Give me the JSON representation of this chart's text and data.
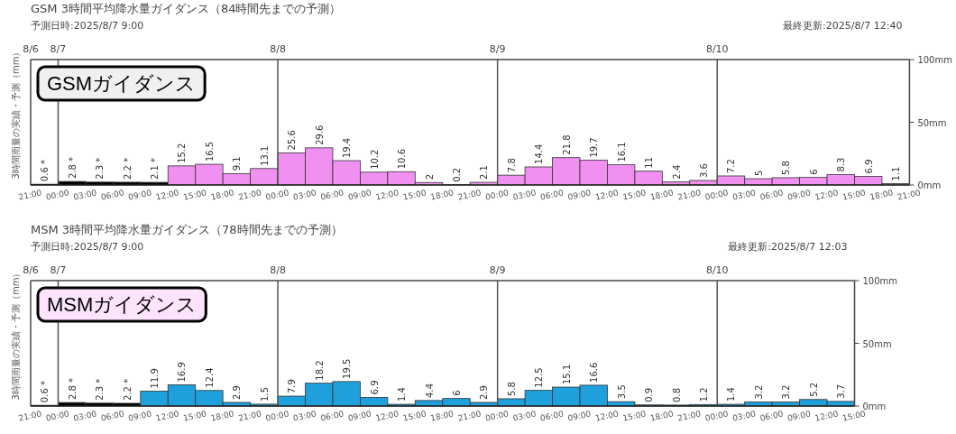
{
  "chart_data": [
    {
      "type": "bar",
      "title": "GSM 3時間平均降水量ガイダンス（84時間先までの予測）",
      "subtitle": "予測日時:2025/8/7 9:00",
      "ylabel": "3時間雨量の実績・予測（mm）",
      "annotations": [
        "最終更新:2025/8/7 12:40",
        "GSMガイダンス"
      ],
      "x": [
        "2025-08-06T22:30",
        "2025-08-07T01:30",
        "2025-08-07T04:30",
        "2025-08-07T07:30",
        "2025-08-07T10:30",
        "2025-08-07T13:30",
        "2025-08-07T16:30",
        "2025-08-07T19:30",
        "2025-08-07T22:30",
        "2025-08-08T01:30",
        "2025-08-08T04:30",
        "2025-08-08T07:30",
        "2025-08-08T10:30",
        "2025-08-08T13:30",
        "2025-08-08T16:30",
        "2025-08-08T19:30",
        "2025-08-08T22:30",
        "2025-08-09T01:30",
        "2025-08-09T04:30",
        "2025-08-09T07:30",
        "2025-08-09T10:30",
        "2025-08-09T13:30",
        "2025-08-09T16:30",
        "2025-08-09T19:30",
        "2025-08-09T22:30",
        "2025-08-10T01:30",
        "2025-08-10T04:30",
        "2025-08-10T07:30",
        "2025-08-10T10:30",
        "2025-08-10T13:30",
        "2025-08-10T16:30",
        "2025-08-10T19:30"
      ],
      "values": [
        0.6,
        2.8,
        2.3,
        2.2,
        2.1,
        15.2,
        16.5,
        9.1,
        13.1,
        25.6,
        29.6,
        19.4,
        10.2,
        10.6,
        2,
        0.2,
        2.1,
        7.8,
        14.4,
        21.8,
        19.7,
        16.1,
        11,
        2.4,
        3.6,
        7.2,
        5,
        5.8,
        6,
        8.3,
        6.9,
        1.1
      ],
      "value_labels": [
        "0.6 *",
        "2.8 *",
        "2.3 *",
        "2.2 *",
        "2.1 *",
        "15.2",
        "16.5",
        "9.1",
        "13.1",
        "25.6",
        "29.6",
        "19.4",
        "10.2",
        "10.6",
        "2",
        "0.2",
        "2.1",
        "7.8",
        "14.4",
        "21.8",
        "19.7",
        "16.1",
        "11",
        "2.4",
        "3.6",
        "7.2",
        "5",
        "5.8",
        "6",
        "8.3",
        "6.9",
        "1.1"
      ],
      "colors": [
        "#000000",
        "#000000",
        "#000000",
        "#000000",
        "#000000",
        "#f090f0",
        "#f090f0",
        "#f090f0",
        "#f090f0",
        "#f090f0",
        "#f090f0",
        "#f090f0",
        "#f090f0",
        "#f090f0",
        "#f090f0",
        "#f090f0",
        "#f090f0",
        "#f090f0",
        "#f090f0",
        "#f090f0",
        "#f090f0",
        "#f090f0",
        "#f090f0",
        "#f090f0",
        "#f090f0",
        "#f090f0",
        "#f090f0",
        "#f090f0",
        "#f090f0",
        "#f090f0",
        "#f090f0",
        "#f090f0"
      ],
      "xlim": [
        "2025-08-06T21:00",
        "2025-08-10T21:00"
      ],
      "x2lim": [
        "2025-08-06T21:00",
        "2025-08-10T21:00"
      ],
      "xticks": [
        {
          "value": "2025-08-06T21:00",
          "label": "21:00"
        },
        {
          "value": "2025-08-07T00:00",
          "label": "00:00"
        },
        {
          "value": "2025-08-07T03:00",
          "label": "03:00"
        },
        {
          "value": "2025-08-07T06:00",
          "label": "06:00"
        },
        {
          "value": "2025-08-07T09:00",
          "label": "09:00"
        },
        {
          "value": "2025-08-07T12:00",
          "label": "12:00"
        },
        {
          "value": "2025-08-07T15:00",
          "label": "15:00"
        },
        {
          "value": "2025-08-07T18:00",
          "label": "18:00"
        },
        {
          "value": "2025-08-07T21:00",
          "label": "21:00"
        },
        {
          "value": "2025-08-08T00:00",
          "label": "00:00"
        },
        {
          "value": "2025-08-08T03:00",
          "label": "03:00"
        },
        {
          "value": "2025-08-08T06:00",
          "label": "06:00"
        },
        {
          "value": "2025-08-08T09:00",
          "label": "09:00"
        },
        {
          "value": "2025-08-08T12:00",
          "label": "12:00"
        },
        {
          "value": "2025-08-08T15:00",
          "label": "15:00"
        },
        {
          "value": "2025-08-08T18:00",
          "label": "18:00"
        },
        {
          "value": "2025-08-08T21:00",
          "label": "21:00"
        },
        {
          "value": "2025-08-09T00:00",
          "label": "00:00"
        },
        {
          "value": "2025-08-09T03:00",
          "label": "03:00"
        },
        {
          "value": "2025-08-09T06:00",
          "label": "06:00"
        },
        {
          "value": "2025-08-09T09:00",
          "label": "09:00"
        },
        {
          "value": "2025-08-09T12:00",
          "label": "12:00"
        },
        {
          "value": "2025-08-09T15:00",
          "label": "15:00"
        },
        {
          "value": "2025-08-09T18:00",
          "label": "18:00"
        },
        {
          "value": "2025-08-09T21:00",
          "label": "21:00"
        },
        {
          "value": "2025-08-10T00:00",
          "label": "00:00"
        },
        {
          "value": "2025-08-10T03:00",
          "label": "03:00"
        },
        {
          "value": "2025-08-10T06:00",
          "label": "06:00"
        },
        {
          "value": "2025-08-10T09:00",
          "label": "09:00"
        },
        {
          "value": "2025-08-10T12:00",
          "label": "12:00"
        },
        {
          "value": "2025-08-10T15:00",
          "label": "15:00"
        },
        {
          "value": "2025-08-10T18:00",
          "label": "18:00"
        },
        {
          "value": "2025-08-10T21:00",
          "label": "21:00"
        }
      ],
      "x2ticks": [
        {
          "value": "2025-08-06T21:00",
          "label": "8/6"
        },
        {
          "value": "2025-08-07",
          "label": "8/7"
        },
        {
          "value": "2025-08-08",
          "label": "8/8"
        },
        {
          "value": "2025-08-09",
          "label": "8/9"
        },
        {
          "value": "2025-08-10",
          "label": "8/10"
        }
      ],
      "ylim": [
        0,
        100
      ],
      "yticks": [
        {
          "value": 0,
          "label": "0mm"
        },
        {
          "value": 50,
          "label": "50mm"
        },
        {
          "value": 100,
          "label": "100mm"
        }
      ],
      "ref_lines": [
        {
          "axis": "x",
          "value": "2025-08-07",
          "color": "#555555"
        },
        {
          "axis": "x",
          "value": "2025-08-08",
          "color": "#555555"
        },
        {
          "axis": "x",
          "value": "2025-08-09",
          "color": "#555555"
        },
        {
          "axis": "x",
          "value": "2025-08-10",
          "color": "#555555"
        }
      ]
    },
    {
      "type": "bar",
      "title": "MSM 3時間平均降水量ガイダンス（78時間先までの予測）",
      "subtitle": "予測日時:2025/8/7 9:00",
      "ylabel": "3時間雨量の実績・予測（mm）",
      "annotations": [
        "最終更新:2025/8/7 12:03",
        "MSMガイダンス"
      ],
      "x": [
        "2025-08-06T22:30",
        "2025-08-07T01:30",
        "2025-08-07T04:30",
        "2025-08-07T07:30",
        "2025-08-07T10:30",
        "2025-08-07T13:30",
        "2025-08-07T16:30",
        "2025-08-07T19:30",
        "2025-08-07T22:30",
        "2025-08-08T01:30",
        "2025-08-08T04:30",
        "2025-08-08T07:30",
        "2025-08-08T10:30",
        "2025-08-08T13:30",
        "2025-08-08T16:30",
        "2025-08-08T19:30",
        "2025-08-08T22:30",
        "2025-08-09T01:30",
        "2025-08-09T04:30",
        "2025-08-09T07:30",
        "2025-08-09T10:30",
        "2025-08-09T13:30",
        "2025-08-09T16:30",
        "2025-08-09T19:30",
        "2025-08-09T22:30",
        "2025-08-10T01:30",
        "2025-08-10T04:30",
        "2025-08-10T07:30",
        "2025-08-10T10:30",
        "2025-08-10T13:30"
      ],
      "values": [
        0.6,
        2.8,
        2.3,
        2.2,
        11.9,
        16.9,
        12.4,
        2.9,
        1.5,
        7.9,
        18.2,
        19.5,
        6.9,
        1.4,
        4.4,
        6,
        2.9,
        5.8,
        12.5,
        15.1,
        16.6,
        3.5,
        0.9,
        0.8,
        1.2,
        1.4,
        3.2,
        3.2,
        5.2,
        3.7
      ],
      "value_labels": [
        "0.6 *",
        "2.8 *",
        "2.3 *",
        "2.2 *",
        "11.9",
        "16.9",
        "12.4",
        "2.9",
        "1.5",
        "7.9",
        "18.2",
        "19.5",
        "6.9",
        "1.4",
        "4.4",
        "6",
        "2.9",
        "5.8",
        "12.5",
        "15.1",
        "16.6",
        "3.5",
        "0.9",
        "0.8",
        "1.2",
        "1.4",
        "3.2",
        "3.2",
        "5.2",
        "3.7"
      ],
      "colors": [
        "#000000",
        "#000000",
        "#000000",
        "#000000",
        "#1ea0dc",
        "#1ea0dc",
        "#1ea0dc",
        "#1ea0dc",
        "#1ea0dc",
        "#1ea0dc",
        "#1ea0dc",
        "#1ea0dc",
        "#1ea0dc",
        "#1ea0dc",
        "#1ea0dc",
        "#1ea0dc",
        "#1ea0dc",
        "#1ea0dc",
        "#1ea0dc",
        "#1ea0dc",
        "#1ea0dc",
        "#1ea0dc",
        "#1ea0dc",
        "#1ea0dc",
        "#1ea0dc",
        "#1ea0dc",
        "#1ea0dc",
        "#1ea0dc",
        "#1ea0dc",
        "#1ea0dc"
      ],
      "xlim": [
        "2025-08-06T21:00",
        "2025-08-10T15:00"
      ],
      "x2lim": [
        "2025-08-06T21:00",
        "2025-08-10T15:00"
      ],
      "xticks": [
        {
          "value": "2025-08-06T21:00",
          "label": "21:00"
        },
        {
          "value": "2025-08-07T00:00",
          "label": "00:00"
        },
        {
          "value": "2025-08-07T03:00",
          "label": "03:00"
        },
        {
          "value": "2025-08-07T06:00",
          "label": "06:00"
        },
        {
          "value": "2025-08-07T09:00",
          "label": "09:00"
        },
        {
          "value": "2025-08-07T12:00",
          "label": "12:00"
        },
        {
          "value": "2025-08-07T15:00",
          "label": "15:00"
        },
        {
          "value": "2025-08-07T18:00",
          "label": "18:00"
        },
        {
          "value": "2025-08-07T21:00",
          "label": "21:00"
        },
        {
          "value": "2025-08-08T00:00",
          "label": "00:00"
        },
        {
          "value": "2025-08-08T03:00",
          "label": "03:00"
        },
        {
          "value": "2025-08-08T06:00",
          "label": "06:00"
        },
        {
          "value": "2025-08-08T09:00",
          "label": "09:00"
        },
        {
          "value": "2025-08-08T12:00",
          "label": "12:00"
        },
        {
          "value": "2025-08-08T15:00",
          "label": "15:00"
        },
        {
          "value": "2025-08-08T18:00",
          "label": "18:00"
        },
        {
          "value": "2025-08-08T21:00",
          "label": "21:00"
        },
        {
          "value": "2025-08-09T00:00",
          "label": "00:00"
        },
        {
          "value": "2025-08-09T03:00",
          "label": "03:00"
        },
        {
          "value": "2025-08-09T06:00",
          "label": "06:00"
        },
        {
          "value": "2025-08-09T09:00",
          "label": "09:00"
        },
        {
          "value": "2025-08-09T12:00",
          "label": "12:00"
        },
        {
          "value": "2025-08-09T15:00",
          "label": "15:00"
        },
        {
          "value": "2025-08-09T18:00",
          "label": "18:00"
        },
        {
          "value": "2025-08-09T21:00",
          "label": "21:00"
        },
        {
          "value": "2025-08-10T00:00",
          "label": "00:00"
        },
        {
          "value": "2025-08-10T03:00",
          "label": "03:00"
        },
        {
          "value": "2025-08-10T06:00",
          "label": "06:00"
        },
        {
          "value": "2025-08-10T09:00",
          "label": "09:00"
        },
        {
          "value": "2025-08-10T12:00",
          "label": "12:00"
        },
        {
          "value": "2025-08-10T15:00",
          "label": "15:00"
        }
      ],
      "x2ticks": [
        {
          "value": "2025-08-06T21:00",
          "label": "8/6"
        },
        {
          "value": "2025-08-07",
          "label": "8/7"
        },
        {
          "value": "2025-08-08",
          "label": "8/8"
        },
        {
          "value": "2025-08-09",
          "label": "8/9"
        },
        {
          "value": "2025-08-10",
          "label": "8/10"
        }
      ],
      "ylim": [
        0,
        100
      ],
      "yticks": [
        {
          "value": 0,
          "label": "0mm"
        },
        {
          "value": 50,
          "label": "50mm"
        },
        {
          "value": 100,
          "label": "100mm"
        }
      ],
      "ref_lines": [
        {
          "axis": "x",
          "value": "2025-08-07",
          "color": "#555555"
        },
        {
          "axis": "x",
          "value": "2025-08-08",
          "color": "#555555"
        },
        {
          "axis": "x",
          "value": "2025-08-09",
          "color": "#555555"
        },
        {
          "axis": "x",
          "value": "2025-08-10",
          "color": "#555555"
        }
      ]
    }
  ]
}
